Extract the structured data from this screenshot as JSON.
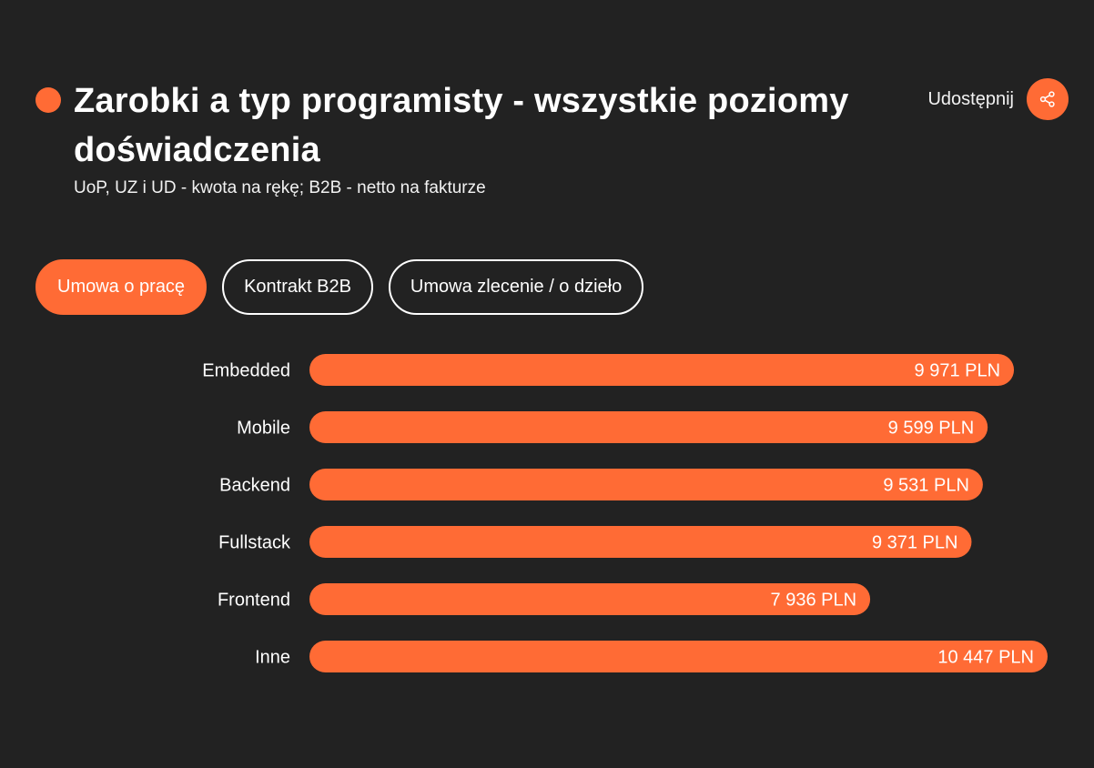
{
  "header": {
    "title": "Zarobki a typ programisty - wszystkie poziomy doświadczenia",
    "subtitle": "UoP, UZ i UD - kwota na rękę; B2B - netto na fakturze",
    "share_label": "Udostępnij",
    "share_icon": "share-icon"
  },
  "tabs": [
    {
      "label": "Umowa o pracę",
      "active": true
    },
    {
      "label": "Kontrakt B2B",
      "active": false
    },
    {
      "label": "Umowa zlecenie / o dzieło",
      "active": false
    }
  ],
  "colors": {
    "background": "#222222",
    "accent": "#ff6b35",
    "text": "#ffffff"
  },
  "chart_data": {
    "type": "bar",
    "orientation": "horizontal",
    "categories": [
      "Embedded",
      "Mobile",
      "Backend",
      "Fullstack",
      "Frontend",
      "Inne"
    ],
    "values": [
      9971,
      9599,
      9531,
      9371,
      7936,
      10447
    ],
    "value_labels": [
      "9 971 PLN",
      "9 599 PLN",
      "9 531 PLN",
      "9 371 PLN",
      "7 936 PLN",
      "10 447 PLN"
    ],
    "unit": "PLN",
    "grid": false,
    "legend": "none"
  }
}
